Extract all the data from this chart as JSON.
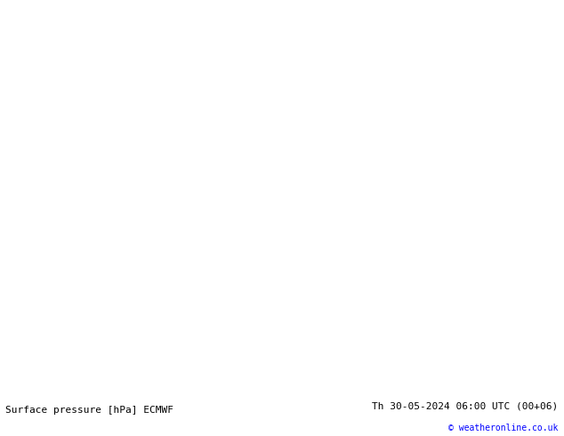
{
  "title_left": "Surface pressure [hPa] ECMWF",
  "title_right": "Th 30-05-2024 06:00 UTC (00+06)",
  "copyright": "© weatheronline.co.uk",
  "land_color": "#b8e090",
  "sea_color": "#c8c8c8",
  "border_color": "#555555",
  "contour_blue": "#0000cc",
  "contour_black": "#000000",
  "contour_red": "#cc0000",
  "label_fontsize": 7,
  "bottom_bg": "#e8e8e8",
  "fig_width": 6.34,
  "fig_height": 4.9,
  "dpi": 100,
  "lon_min": 1.0,
  "lon_max": 22.0,
  "lat_min": 35.0,
  "lat_max": 49.0
}
